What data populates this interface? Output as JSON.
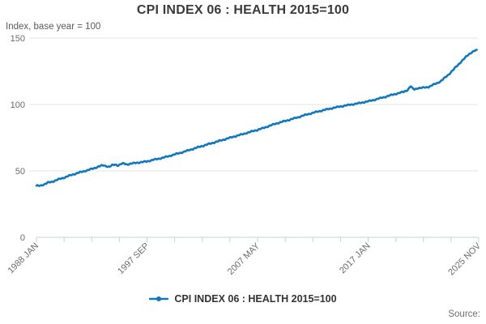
{
  "page": {
    "title": "CPI INDEX 06 : HEALTH 2015=100",
    "subtitle": "Index, base year = 100",
    "source_label": "Source:"
  },
  "legend": {
    "label": "CPI INDEX 06 : HEALTH 2015=100"
  },
  "colors": {
    "line": "#1077bd",
    "title_text": "#3a3a3a",
    "axis_text": "#6b6b6b",
    "gridline": "#e6e6e6",
    "axis_line": "#c4d2e0",
    "source_text": "#6e6e6e"
  },
  "chart_data": {
    "type": "line",
    "title": "CPI INDEX 06 : HEALTH 2015=100",
    "ylabel": "Index, base year = 100",
    "ylim": [
      0,
      150
    ],
    "yticks": [
      0,
      50,
      100,
      150
    ],
    "grid": "horizontal",
    "legend_position": "bottom",
    "x_start": 1988.0,
    "x_end": 2025.917,
    "x_minor_tick_count": 17,
    "xtick_labels": [
      "1988 JAN",
      "1997 SEP",
      "2007 MAY",
      "2017 JAN",
      "2025 NOV"
    ],
    "series": [
      {
        "name": "CPI INDEX 06 : HEALTH 2015=100",
        "color": "#1077bd",
        "points": [
          [
            1988.0,
            38.7
          ],
          [
            1988.33,
            39.0
          ],
          [
            1988.67,
            39.8
          ],
          [
            1989.0,
            41.2
          ],
          [
            1989.5,
            42.3
          ],
          [
            1990.0,
            44.0
          ],
          [
            1990.5,
            45.3
          ],
          [
            1991.0,
            47.0
          ],
          [
            1991.5,
            48.3
          ],
          [
            1992.0,
            49.6
          ],
          [
            1992.5,
            50.8
          ],
          [
            1993.0,
            52.2
          ],
          [
            1993.5,
            53.8
          ],
          [
            1993.75,
            54.2
          ],
          [
            1994.0,
            53.6
          ],
          [
            1994.25,
            53.0
          ],
          [
            1994.5,
            54.3
          ],
          [
            1994.75,
            54.8
          ],
          [
            1995.0,
            54.1
          ],
          [
            1995.25,
            55.2
          ],
          [
            1995.5,
            55.6
          ],
          [
            1995.75,
            54.9
          ],
          [
            1996.0,
            55.3
          ],
          [
            1996.5,
            56.0
          ],
          [
            1997.0,
            56.6
          ],
          [
            1997.5,
            57.2
          ],
          [
            1998.0,
            58.3
          ],
          [
            1998.5,
            59.2
          ],
          [
            1999.0,
            60.3
          ],
          [
            1999.5,
            61.5
          ],
          [
            2000.0,
            62.8
          ],
          [
            2000.5,
            64.0
          ],
          [
            2001.0,
            65.4
          ],
          [
            2001.5,
            66.8
          ],
          [
            2002.0,
            68.2
          ],
          [
            2002.5,
            69.5
          ],
          [
            2003.0,
            70.8
          ],
          [
            2003.5,
            72.1
          ],
          [
            2004.0,
            73.4
          ],
          [
            2004.5,
            74.7
          ],
          [
            2005.0,
            76.0
          ],
          [
            2005.5,
            77.2
          ],
          [
            2006.0,
            78.5
          ],
          [
            2006.5,
            79.8
          ],
          [
            2007.0,
            81.0
          ],
          [
            2007.5,
            82.4
          ],
          [
            2008.0,
            84.0
          ],
          [
            2008.5,
            85.5
          ],
          [
            2009.0,
            86.8
          ],
          [
            2009.5,
            88.0
          ],
          [
            2010.0,
            89.3
          ],
          [
            2010.5,
            90.6
          ],
          [
            2011.0,
            92.0
          ],
          [
            2011.5,
            93.2
          ],
          [
            2012.0,
            94.4
          ],
          [
            2012.5,
            95.5
          ],
          [
            2013.0,
            96.5
          ],
          [
            2013.5,
            97.5
          ],
          [
            2014.0,
            98.4
          ],
          [
            2014.5,
            99.2
          ],
          [
            2015.0,
            100.0
          ],
          [
            2015.5,
            100.7
          ],
          [
            2016.0,
            101.6
          ],
          [
            2016.5,
            102.5
          ],
          [
            2017.0,
            103.6
          ],
          [
            2017.5,
            104.8
          ],
          [
            2018.0,
            106.0
          ],
          [
            2018.5,
            107.3
          ],
          [
            2019.0,
            108.4
          ],
          [
            2019.5,
            109.6
          ],
          [
            2019.83,
            111.0
          ],
          [
            2020.08,
            113.8
          ],
          [
            2020.25,
            112.0
          ],
          [
            2020.42,
            111.4
          ],
          [
            2020.67,
            112.3
          ],
          [
            2021.0,
            112.4
          ],
          [
            2021.33,
            112.9
          ],
          [
            2021.67,
            113.3
          ],
          [
            2022.0,
            114.8
          ],
          [
            2022.33,
            116.0
          ],
          [
            2022.67,
            117.6
          ],
          [
            2023.0,
            120.0
          ],
          [
            2023.33,
            122.5
          ],
          [
            2023.67,
            125.5
          ],
          [
            2024.0,
            128.5
          ],
          [
            2024.33,
            131.5
          ],
          [
            2024.67,
            134.5
          ],
          [
            2025.0,
            137.2
          ],
          [
            2025.25,
            139.0
          ],
          [
            2025.5,
            140.2
          ],
          [
            2025.67,
            140.8
          ],
          [
            2025.83,
            140.3
          ]
        ]
      }
    ]
  }
}
